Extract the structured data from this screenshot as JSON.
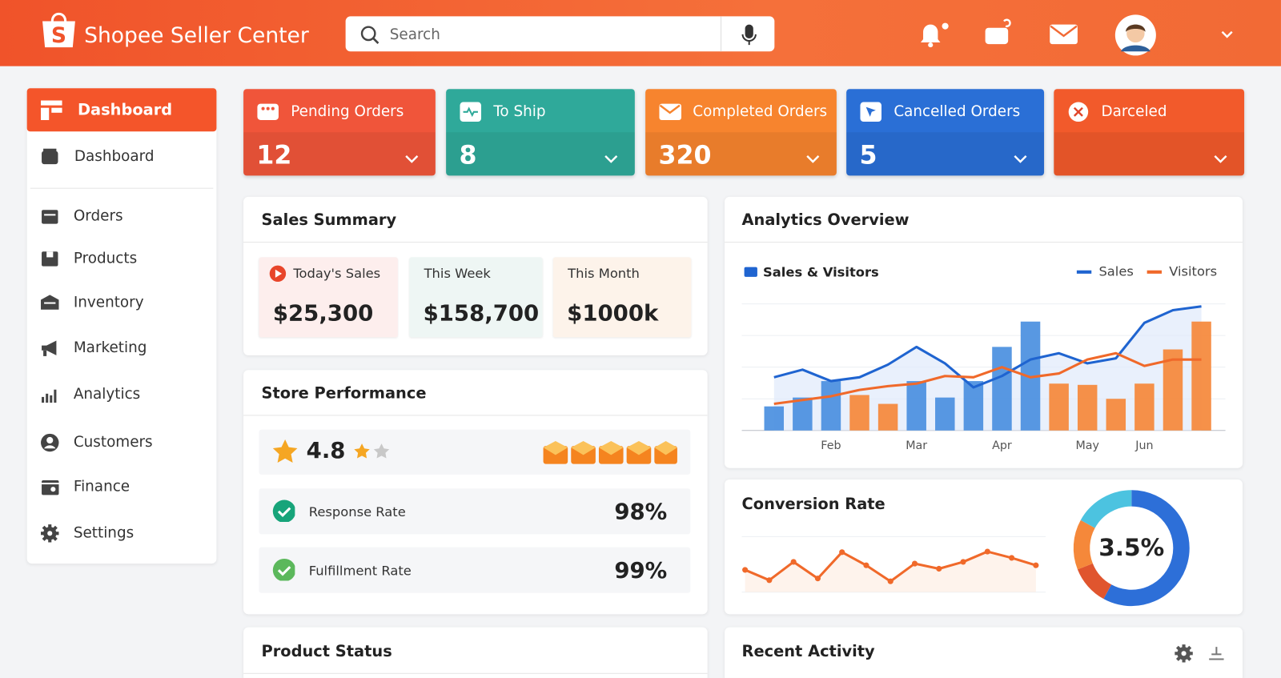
{
  "header": {
    "brand": "Shopee Seller Center",
    "search_placeholder": "Search"
  },
  "sidebar": {
    "active": "Dashboard",
    "items": [
      "Dashboard",
      "Orders",
      "Products",
      "Inventory",
      "Marketing",
      "Analytics",
      "Customers",
      "Finance",
      "Settings"
    ]
  },
  "status_cards": [
    {
      "label": "Pending Orders",
      "value": 12,
      "color": "#f0553a"
    },
    {
      "label": "To Ship",
      "value": 8,
      "color": "#2fa99a"
    },
    {
      "label": "Completed Orders",
      "value": 320,
      "color": "#f7842e"
    },
    {
      "label": "Cancelled Orders",
      "value": 5,
      "color": "#2a6fd6"
    },
    {
      "label": "Darceled",
      "color": "#f25a2b"
    }
  ],
  "sales_summary": {
    "title": "Sales Summary",
    "items": [
      {
        "label": "Today's Sales",
        "value": "$25,300"
      },
      {
        "label": "This Week",
        "value": "$158,700"
      },
      {
        "label": "This Month",
        "value": "$1000k"
      }
    ]
  },
  "store_performance": {
    "title": "Store Performance",
    "rating": "4.8",
    "metrics": [
      {
        "label": "Response Rate",
        "value": "98%"
      },
      {
        "label": "Fulfillment Rate",
        "value": "99%"
      }
    ]
  },
  "analytics": {
    "title": "Analytics Overview",
    "chart_data": {
      "type": "combo",
      "legend_title": "Sales & Visitors",
      "categories": [
        null,
        null,
        "Feb",
        null,
        null,
        "Mar",
        null,
        null,
        "Apr",
        null,
        null,
        "May",
        null,
        "Jun",
        null,
        null
      ],
      "bars": {
        "values": [
          19,
          26,
          39,
          28,
          21,
          39,
          26,
          39,
          66,
          86,
          37,
          36,
          25,
          37,
          64,
          86
        ],
        "colors": [
          "#4a8fe0",
          "#4a8fe0",
          "#4a8fe0",
          "#f5883a",
          "#f5883a",
          "#4a8fe0",
          "#4a8fe0",
          "#4a8fe0",
          "#4a8fe0",
          "#4a8fe0",
          "#f5883a",
          "#f5883a",
          "#f5883a",
          "#f5883a",
          "#f5883a",
          "#f5883a"
        ]
      },
      "series": [
        {
          "name": "Sales",
          "color": "#1f64d0",
          "values": [
            42,
            48,
            39,
            42,
            52,
            66,
            53,
            34,
            43,
            56,
            61,
            53,
            57,
            85,
            95,
            98
          ]
        },
        {
          "name": "Visitors",
          "color": "#f0692a",
          "values": [
            21,
            24,
            27,
            32,
            35,
            37,
            43,
            42,
            50,
            42,
            45,
            56,
            61,
            51,
            56,
            56
          ]
        }
      ],
      "ylim": [
        0,
        100
      ],
      "yticks": [
        0,
        25,
        50,
        75,
        100
      ],
      "grid": true,
      "legend": "top-right"
    }
  },
  "conversion": {
    "title": "Conversion Rate",
    "rate_label": "3.5%",
    "chart_data": {
      "type": "line",
      "values": [
        39,
        21,
        53,
        24,
        70,
        47,
        19,
        50,
        41,
        53,
        71,
        60,
        47
      ],
      "color": "#f0692a",
      "ylim": [
        0,
        100
      ]
    },
    "donut": {
      "type": "pie",
      "values": [
        58,
        11,
        14,
        17
      ],
      "colors": [
        "#2d6fd8",
        "#e0552e",
        "#f5883a",
        "#4cc3e0"
      ]
    }
  },
  "product_status": {
    "title": "Product Status"
  },
  "recent_activity": {
    "title": "Recent Activity"
  }
}
